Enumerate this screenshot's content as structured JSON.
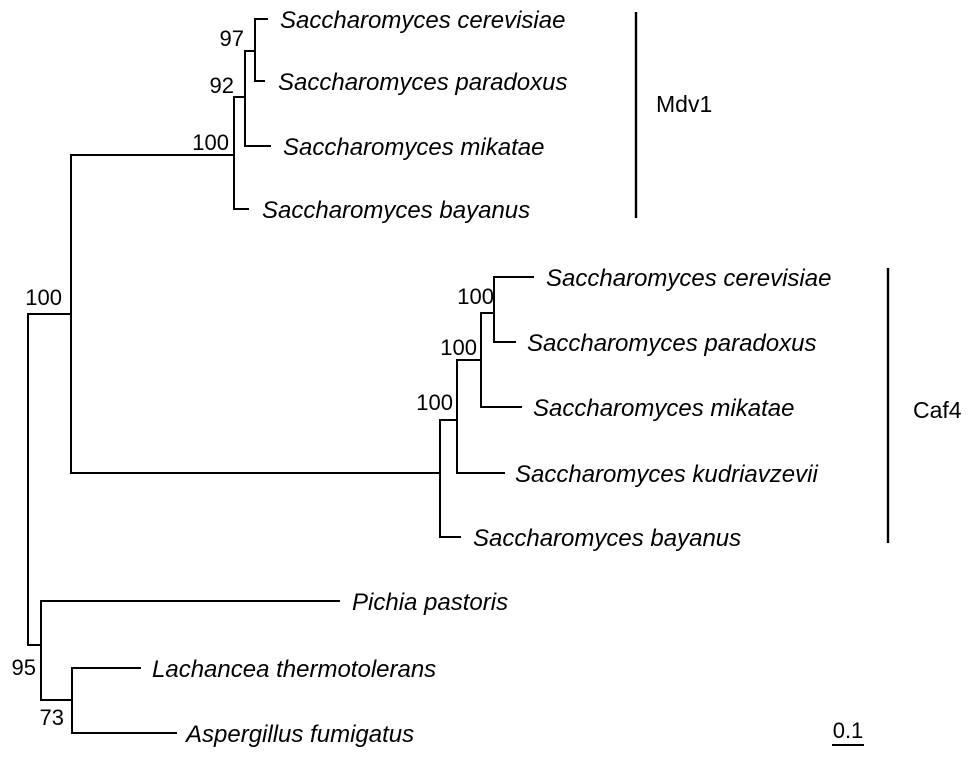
{
  "tree": {
    "taxa": [
      "Saccharomyces cerevisiae",
      "Saccharomyces paradoxus",
      "Saccharomyces mikatae",
      "Saccharomyces bayanus",
      "Saccharomyces cerevisiae",
      "Saccharomyces paradoxus",
      "Saccharomyces mikatae",
      "Saccharomyces kudriavzevii",
      "Saccharomyces bayanus",
      "Pichia pastoris",
      "Lachancea thermotolerans",
      "Aspergillus fumigatus"
    ],
    "support_values": [
      "97",
      "92",
      "100",
      "100",
      "100",
      "100",
      "100",
      "95",
      "73"
    ],
    "clades": [
      {
        "label": "Mdv1"
      },
      {
        "label": "Caf4"
      }
    ],
    "scale_bar": {
      "label": "0.1"
    }
  }
}
